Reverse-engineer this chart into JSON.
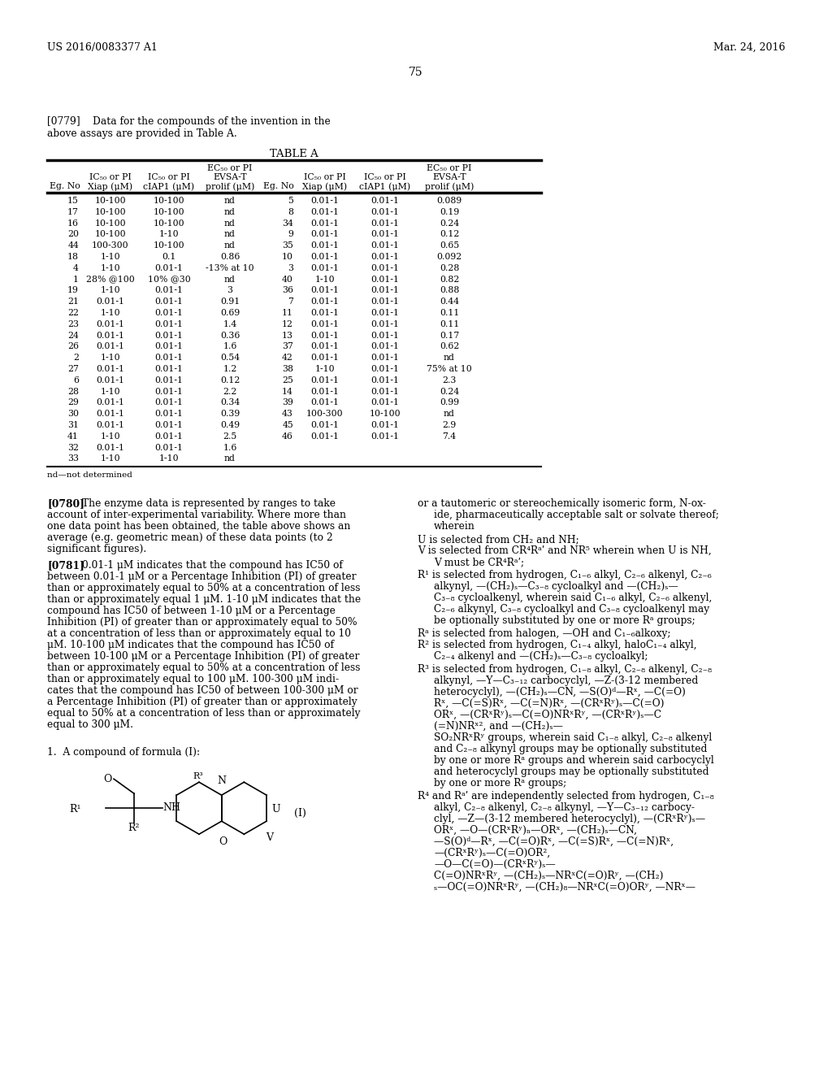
{
  "header_left": "US 2016/0083377 A1",
  "header_right": "Mar. 24, 2016",
  "page_number": "75",
  "para0779_line1": "[0779]    Data for the compounds of the invention in the",
  "para0779_line2": "above assays are provided in Table A.",
  "table_title": "TABLE A",
  "table_data": [
    [
      "15",
      "10-100",
      "10-100",
      "nd",
      "5",
      "0.01-1",
      "0.01-1",
      "0.089"
    ],
    [
      "17",
      "10-100",
      "10-100",
      "nd",
      "8",
      "0.01-1",
      "0.01-1",
      "0.19"
    ],
    [
      "16",
      "10-100",
      "10-100",
      "nd",
      "34",
      "0.01-1",
      "0.01-1",
      "0.24"
    ],
    [
      "20",
      "10-100",
      "1-10",
      "nd",
      "9",
      "0.01-1",
      "0.01-1",
      "0.12"
    ],
    [
      "44",
      "100-300",
      "10-100",
      "nd",
      "35",
      "0.01-1",
      "0.01-1",
      "0.65"
    ],
    [
      "18",
      "1-10",
      "0.1",
      "0.86",
      "10",
      "0.01-1",
      "0.01-1",
      "0.092"
    ],
    [
      "4",
      "1-10",
      "0.01-1",
      "-13% at 10",
      "3",
      "0.01-1",
      "0.01-1",
      "0.28"
    ],
    [
      "1",
      "28% @100",
      "10% @30",
      "nd",
      "40",
      "1-10",
      "0.01-1",
      "0.82"
    ],
    [
      "19",
      "1-10",
      "0.01-1",
      "3",
      "36",
      "0.01-1",
      "0.01-1",
      "0.88"
    ],
    [
      "21",
      "0.01-1",
      "0.01-1",
      "0.91",
      "7",
      "0.01-1",
      "0.01-1",
      "0.44"
    ],
    [
      "22",
      "1-10",
      "0.01-1",
      "0.69",
      "11",
      "0.01-1",
      "0.01-1",
      "0.11"
    ],
    [
      "23",
      "0.01-1",
      "0.01-1",
      "1.4",
      "12",
      "0.01-1",
      "0.01-1",
      "0.11"
    ],
    [
      "24",
      "0.01-1",
      "0.01-1",
      "0.36",
      "13",
      "0.01-1",
      "0.01-1",
      "0.17"
    ],
    [
      "26",
      "0.01-1",
      "0.01-1",
      "1.6",
      "37",
      "0.01-1",
      "0.01-1",
      "0.62"
    ],
    [
      "2",
      "1-10",
      "0.01-1",
      "0.54",
      "42",
      "0.01-1",
      "0.01-1",
      "nd"
    ],
    [
      "27",
      "0.01-1",
      "0.01-1",
      "1.2",
      "38",
      "1-10",
      "0.01-1",
      "75% at 10"
    ],
    [
      "6",
      "0.01-1",
      "0.01-1",
      "0.12",
      "25",
      "0.01-1",
      "0.01-1",
      "2.3"
    ],
    [
      "28",
      "1-10",
      "0.01-1",
      "2.2",
      "14",
      "0.01-1",
      "0.01-1",
      "0.24"
    ],
    [
      "29",
      "0.01-1",
      "0.01-1",
      "0.34",
      "39",
      "0.01-1",
      "0.01-1",
      "0.99"
    ],
    [
      "30",
      "0.01-1",
      "0.01-1",
      "0.39",
      "43",
      "100-300",
      "10-100",
      "nd"
    ],
    [
      "31",
      "0.01-1",
      "0.01-1",
      "0.49",
      "45",
      "0.01-1",
      "0.01-1",
      "2.9"
    ],
    [
      "41",
      "1-10",
      "0.01-1",
      "2.5",
      "46",
      "0.01-1",
      "0.01-1",
      "7.4"
    ],
    [
      "32",
      "0.01-1",
      "0.01-1",
      "1.6",
      "",
      "",
      "",
      ""
    ],
    [
      "33",
      "1-10",
      "1-10",
      "nd",
      "",
      "",
      "",
      ""
    ]
  ],
  "nd_note": "nd—not determined",
  "para0780_bold": "[0780]",
  "para0780_text": "   The enzyme data is represented by ranges to take account of inter-experimental variability. Where more than one data point has been obtained, the table above shows an average (e.g. geometric mean) of these data points (to 2 significant figures).",
  "para0781_bold": "[0781]",
  "para0781_text": "   0.01-1 μM indicates that the compound has IC50 of between 0.01-1 μM or a Percentage Inhibition (PI) of greater than or approximately equal to 50% at a concentration of less than or approximately equal 1 μM. 1-10 μM indicates that the compound has IC50 of between 1-10 μM or a Percentage Inhibition (PI) of greater than or approximately equal to 50% at a concentration of less than or approximately equal to 10 μM. 10-100 μM indicates that the compound has IC50 of between 10-100 μM or a Percentage Inhibition (PI) of greater than or approximately equal to 50% at a concentration of less than or approximately equal to 100 μM. 100-300 μM indi-cates that the compound has IC50 of between 100-300 μM or a Percentage Inhibition (PI) of greater than or approximately equal to 50% at a concentration of less than or approximately equal to 300 μM.",
  "claim1": "1.  A compound of formula (I):",
  "formula_label": "(I)",
  "or_text": "or a tautomeric or stereochemically isomeric form, N-ox-",
  "or_text2": "ide, pharmaceutically acceptable salt or solvate thereof;",
  "wherein": "wherein",
  "right_items": [
    "U is selected from CH₂ and NH;",
    "V is selected from CR⁴Rᵃʹ and NR⁵ wherein when U is NH,",
    "    V must be CR⁴Rᵃʹ;",
    "R¹ is selected from hydrogen, C₁₋₆ alkyl, C₂₋₆ alkenyl, C₂₋₆",
    "    alkynyl, —(CH₂)ₛ—C₃₋₈ cycloalkyl and —(CH₂)ₛ—",
    "    C₃₋₈ cycloalkenyl, wherein said C₁₋₆ alkyl, C₂₋₆ alkenyl,",
    "    C₂₋₆ alkynyl, C₃₋₈ cycloalkyl and C₃₋₈ cycloalkenyl may",
    "    be optionally substituted by one or more Rᵃ groups;",
    "Rᵃ is selected from halogen, —OH and C₁₋₆alkoxy;",
    "R² is selected from hydrogen, C₁₋₄ alkyl, haloC₁₋₄ alkyl,",
    "    C₂₋₄ alkenyl and —(CH₂)ₛ—C₃₋₈ cycloalkyl;",
    "R³ is selected from hydrogen, C₁₋₈ alkyl, C₂₋₈ alkenyl, C₂₋₈",
    "    alkynyl, —Y—C₃₋₁₂ carbocyclyl, —Z-(3-12 membered",
    "    heterocyclyl), —(CH₂)ₛ—CN, —S(O)ᵈ—Rˣ, —C(=O)",
    "    Rˣ, —C(=S)Rˣ, —C(=N)Rˣ, —(CRˣRʸ)ₛ—C(=O)",
    "    ORˣ, —(CRˣRʸ)ₛ—C(=O)NRˣRʸ, —(CRˣRʸ)ₛ—C",
    "    (=N)NRˣ², and —(CH₂)ₛ—",
    "    SO₂NRˣRʸ groups, wherein said C₁₋₈ alkyl, C₂₋₈ alkenyl",
    "    and C₂₋₈ alkynyl groups may be optionally substituted",
    "    by one or more Rᵃ groups and wherein said carbocyclyl",
    "    and heterocyclyl groups may be optionally substituted",
    "    by one or more Rᵃ groups;",
    "R⁴ and Rᵃʹ are independently selected from hydrogen, C₁₋₈",
    "    alkyl, C₂₋₈ alkenyl, C₂₋₈ alkynyl, —Y—C₃₋₁₂ carbocy-",
    "    clyl, —Z—(3-12 membered heterocyclyl), —(CRˣRʸ)ₛ—",
    "    ORˣ, —O—(CRˣRʸ)ₙ—ORˣ, —(CH₂)ₛ—CN,",
    "    —S(O)ᵈ—Rˣ, —C(=O)Rˣ, —C(=S)Rˣ, —C(=N)Rˣ,",
    "    —(CRˣRʸ)ₛ—C(=O)OR²,",
    "    —O—C(=O)—(CRˣRʸ)ₛ—",
    "    C(=O)NRˣRʸ, —(CH₂)ₛ—NRˣC(=O)Rʸ, —(CH₂)",
    "    ₛ—OC(=O)NRˣRʸ, —(CH₂)₈—NRˣC(=O)ORʸ, —NRˣ—"
  ],
  "bg": "#ffffff"
}
